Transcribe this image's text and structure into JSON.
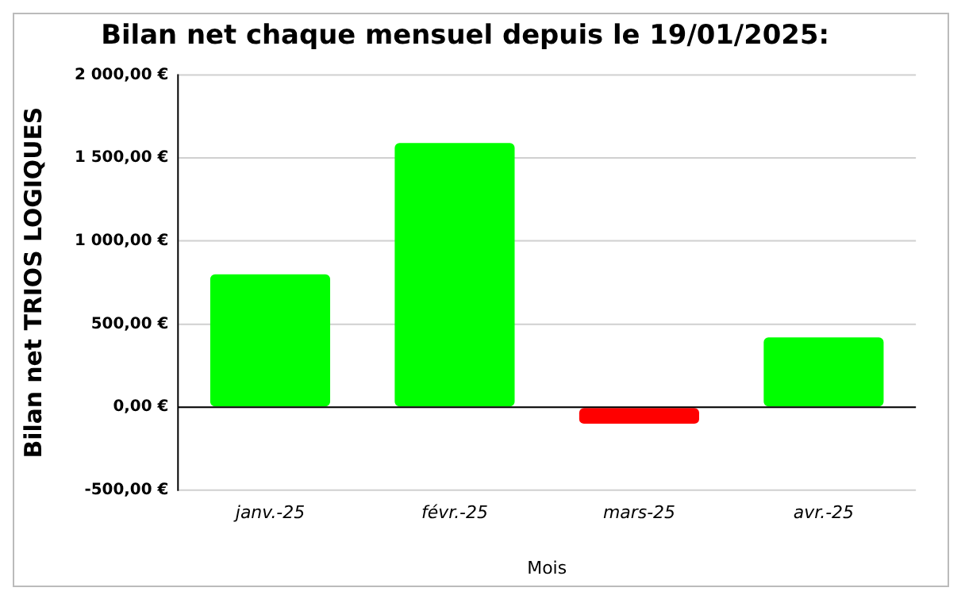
{
  "chart_data": {
    "type": "bar",
    "title": "Bilan net chaque mensuel depuis le 19/01/2025:",
    "xlabel": "Mois",
    "ylabel": "Bilan net TRIOS LOGIQUES",
    "categories": [
      "janv.-25",
      "févr.-25",
      "mars-25",
      "avr.-25"
    ],
    "values": [
      800,
      1590,
      -100,
      420
    ],
    "colors": [
      "#00ff00",
      "#00ff00",
      "#ff0000",
      "#00ff00"
    ],
    "ylim": [
      -500,
      2000
    ],
    "yticks": [
      {
        "value": -500,
        "label": "-500,00 €"
      },
      {
        "value": 0,
        "label": "0,00 €"
      },
      {
        "value": 500,
        "label": "500,00 €"
      },
      {
        "value": 1000,
        "label": "1 000,00 €"
      },
      {
        "value": 1500,
        "label": "1 500,00 €"
      },
      {
        "value": 2000,
        "label": "2 000,00 €"
      }
    ],
    "grid": "y",
    "legend": false
  }
}
